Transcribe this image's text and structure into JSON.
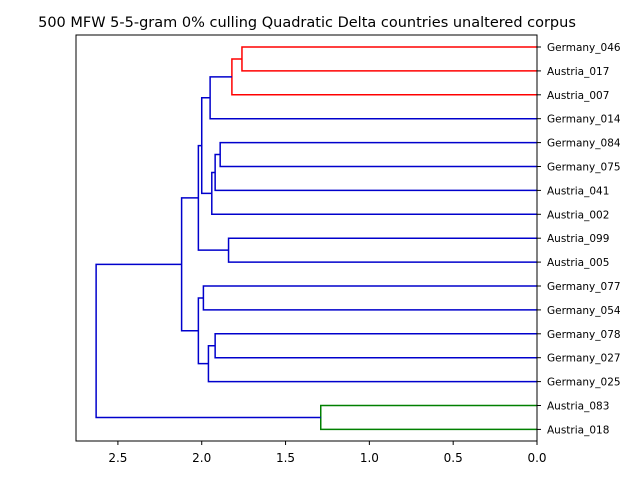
{
  "chart_data": {
    "type": "dendrogram",
    "title": "500 MFW 5-5-gram 0% culling Quadratic Delta countries unaltered corpus",
    "xlabel": "",
    "ylabel": "",
    "xlim": [
      2.75,
      0.0
    ],
    "x_ticks": [
      2.5,
      2.0,
      1.5,
      1.0,
      0.5,
      0.0
    ],
    "x_tick_labels": [
      "2.5",
      "2.0",
      "1.5",
      "1.0",
      "0.5",
      "0.0"
    ],
    "orientation": "left",
    "leaves": [
      "Germany_046",
      "Austria_017",
      "Austria_007",
      "Germany_014",
      "Germany_084",
      "Germany_075",
      "Austria_041",
      "Austria_002",
      "Austria_099",
      "Austria_005",
      "Germany_077",
      "Germany_054",
      "Germany_078",
      "Germany_027",
      "Germany_025",
      "Austria_083",
      "Austria_018"
    ],
    "colors": {
      "red_cluster": "#ff0000",
      "green_cluster": "#008000",
      "default": "#0000cc"
    },
    "merges": [
      {
        "id": "m1",
        "left": "Germany_046",
        "right": "Austria_017",
        "height": 1.76,
        "color": "#ff0000"
      },
      {
        "id": "m2",
        "left": "m1",
        "right": "Austria_007",
        "height": 1.82,
        "color": "#ff0000"
      },
      {
        "id": "m3",
        "left": "m2",
        "right": "Germany_014",
        "height": 1.95,
        "color": "#0000cc"
      },
      {
        "id": "m4",
        "left": "Germany_084",
        "right": "Germany_075",
        "height": 1.89,
        "color": "#0000cc"
      },
      {
        "id": "m5",
        "left": "m4",
        "right": "Austria_041",
        "height": 1.92,
        "color": "#0000cc"
      },
      {
        "id": "m6",
        "left": "m5",
        "right": "Austria_002",
        "height": 1.94,
        "color": "#0000cc"
      },
      {
        "id": "m7",
        "left": "m3",
        "right": "m6",
        "height": 2.0,
        "color": "#0000cc"
      },
      {
        "id": "m8",
        "left": "Austria_099",
        "right": "Austria_005",
        "height": 1.84,
        "color": "#0000cc"
      },
      {
        "id": "m9",
        "left": "m7",
        "right": "m8",
        "height": 2.02,
        "color": "#0000cc"
      },
      {
        "id": "m10",
        "left": "Germany_077",
        "right": "Germany_054",
        "height": 1.99,
        "color": "#0000cc"
      },
      {
        "id": "m11",
        "left": "Germany_078",
        "right": "Germany_027",
        "height": 1.92,
        "color": "#0000cc"
      },
      {
        "id": "m12",
        "left": "m11",
        "right": "Germany_025",
        "height": 1.96,
        "color": "#0000cc"
      },
      {
        "id": "m13",
        "left": "m10",
        "right": "m12",
        "height": 2.02,
        "color": "#0000cc"
      },
      {
        "id": "m14",
        "left": "m9",
        "right": "m13",
        "height": 2.12,
        "color": "#0000cc"
      },
      {
        "id": "m15",
        "left": "Austria_083",
        "right": "Austria_018",
        "height": 1.29,
        "color": "#008000"
      },
      {
        "id": "m16",
        "left": "m14",
        "right": "m15",
        "height": 2.63,
        "color": "#0000cc"
      }
    ]
  }
}
